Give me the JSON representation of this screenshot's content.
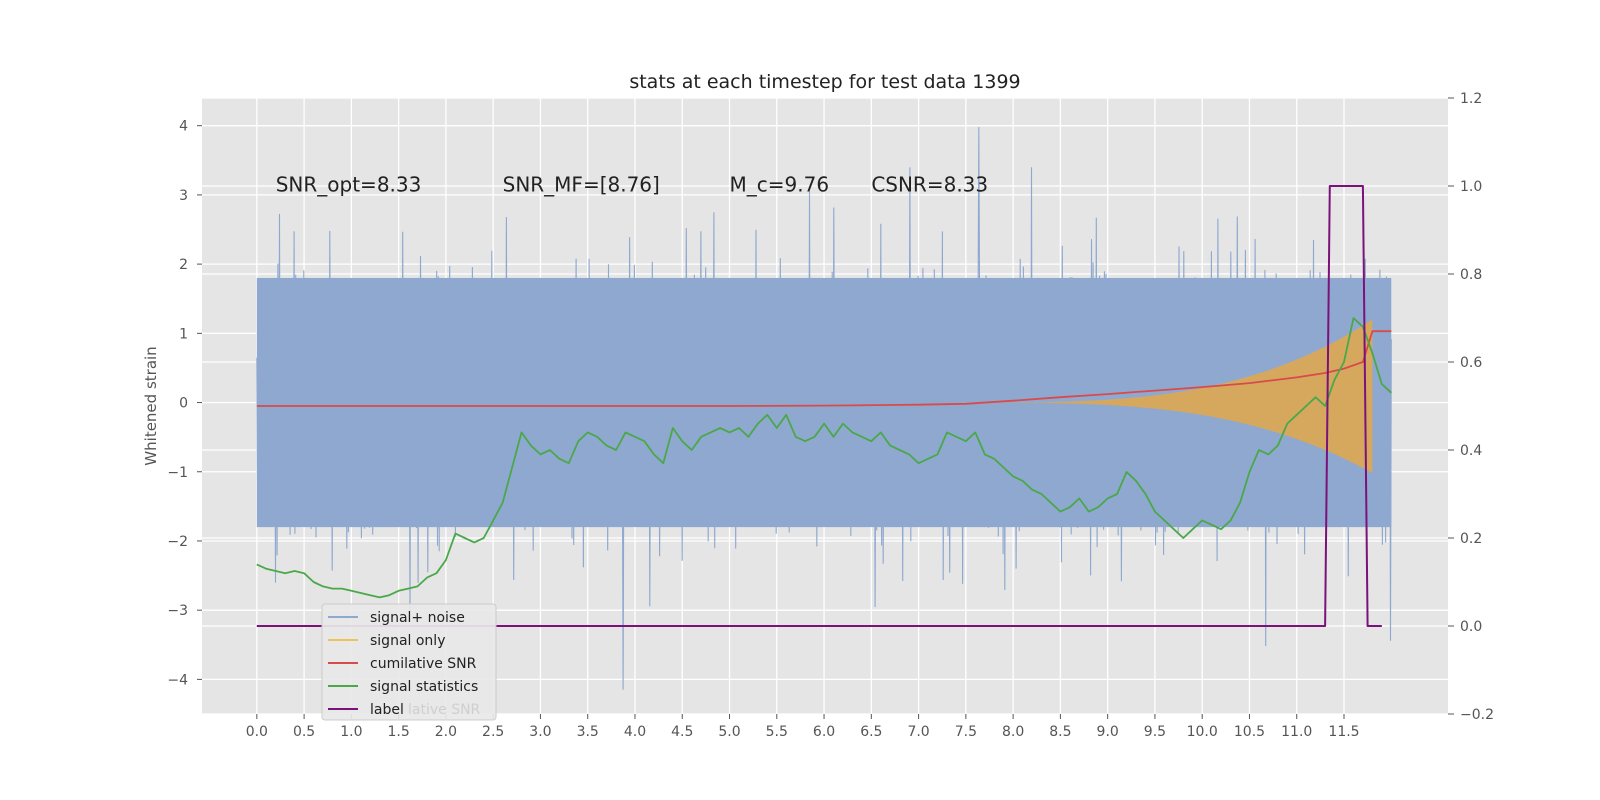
{
  "chart_data": {
    "type": "line",
    "title": "stats at each timestep for test data 1399",
    "xlabel": "",
    "ylabel": "Whitened strain",
    "xlim": [
      -0.58,
      12.6
    ],
    "ylim": [
      -4.5,
      4.4
    ],
    "y2lim": [
      -0.2,
      1.2
    ],
    "xticks": [
      "0.0",
      "0.5",
      "1.0",
      "1.5",
      "2.0",
      "2.5",
      "3.0",
      "3.5",
      "4.0",
      "4.5",
      "5.0",
      "5.5",
      "6.0",
      "6.5",
      "7.0",
      "7.5",
      "8.0",
      "8.5",
      "9.0",
      "9.5",
      "10.0",
      "10.5",
      "11.0",
      "11.5"
    ],
    "yticks": [
      "−4",
      "−3",
      "−2",
      "−1",
      "0",
      "1",
      "2",
      "3",
      "4"
    ],
    "y2ticks": [
      "−0.2",
      "0.0",
      "0.2",
      "0.4",
      "0.6",
      "0.8",
      "1.0",
      "1.2"
    ],
    "grid": true,
    "legend_position": "lower-left",
    "annotations": [
      {
        "text": "SNR_opt=8.33",
        "x": 0.2,
        "y": 3.15
      },
      {
        "text": "SNR_MF=[8.76]",
        "x": 2.6,
        "y": 3.15
      },
      {
        "text": "M_c=9.76",
        "x": 5.0,
        "y": 3.15
      },
      {
        "text": "CSNR=8.33",
        "x": 6.5,
        "y": 3.15
      }
    ],
    "series": [
      {
        "name": "signal+ noise",
        "color": "#8fa8cf",
        "axis": "left",
        "style": "dense-band",
        "x_range": [
          0.0,
          12.0
        ],
        "band_low": -1.8,
        "band_high": 1.8,
        "peak_max": 3.98,
        "peak_min": -4.15
      },
      {
        "name": "signal only",
        "color": "#e6b45a",
        "axis": "left",
        "style": "chirp",
        "x_range": [
          7.5,
          11.8
        ],
        "amp_start": 0.0,
        "amp_end": 1.2
      },
      {
        "name": "cumilative SNR",
        "color": "#d84b4b",
        "axis": "right",
        "x": [
          0.0,
          1.0,
          2.0,
          3.0,
          4.0,
          5.0,
          6.0,
          7.0,
          7.5,
          8.0,
          8.5,
          9.0,
          9.5,
          10.0,
          10.5,
          11.0,
          11.3,
          11.5,
          11.7,
          11.8,
          12.0
        ],
        "y": [
          0.5,
          0.5,
          0.5,
          0.5,
          0.5,
          0.5,
          0.501,
          0.503,
          0.505,
          0.512,
          0.52,
          0.527,
          0.535,
          0.543,
          0.552,
          0.565,
          0.575,
          0.585,
          0.6,
          0.67,
          0.67
        ]
      },
      {
        "name": "signal statistics",
        "color": "#4aa84a",
        "axis": "right",
        "x": [
          0.0,
          0.1,
          0.2,
          0.3,
          0.4,
          0.5,
          0.6,
          0.7,
          0.8,
          0.9,
          1.0,
          1.1,
          1.2,
          1.3,
          1.4,
          1.5,
          1.6,
          1.7,
          1.8,
          1.9,
          2.0,
          2.1,
          2.2,
          2.3,
          2.4,
          2.5,
          2.6,
          2.7,
          2.8,
          2.9,
          3.0,
          3.1,
          3.2,
          3.3,
          3.4,
          3.5,
          3.6,
          3.7,
          3.8,
          3.9,
          4.0,
          4.1,
          4.2,
          4.3,
          4.4,
          4.5,
          4.6,
          4.7,
          4.8,
          4.9,
          5.0,
          5.1,
          5.2,
          5.3,
          5.4,
          5.5,
          5.6,
          5.7,
          5.8,
          5.9,
          6.0,
          6.1,
          6.2,
          6.3,
          6.4,
          6.5,
          6.6,
          6.7,
          6.8,
          6.9,
          7.0,
          7.1,
          7.2,
          7.3,
          7.4,
          7.5,
          7.6,
          7.7,
          7.8,
          7.9,
          8.0,
          8.1,
          8.2,
          8.3,
          8.4,
          8.5,
          8.6,
          8.7,
          8.8,
          8.9,
          9.0,
          9.1,
          9.2,
          9.3,
          9.4,
          9.5,
          9.6,
          9.7,
          9.8,
          9.9,
          10.0,
          10.1,
          10.2,
          10.3,
          10.4,
          10.5,
          10.6,
          10.7,
          10.8,
          10.9,
          11.0,
          11.1,
          11.2,
          11.3,
          11.4,
          11.5,
          11.6,
          11.7,
          11.8,
          11.9,
          12.0
        ],
        "y": [
          0.14,
          0.13,
          0.125,
          0.12,
          0.125,
          0.12,
          0.1,
          0.09,
          0.085,
          0.085,
          0.08,
          0.075,
          0.07,
          0.065,
          0.07,
          0.08,
          0.085,
          0.09,
          0.11,
          0.12,
          0.15,
          0.21,
          0.2,
          0.19,
          0.2,
          0.24,
          0.28,
          0.36,
          0.44,
          0.41,
          0.39,
          0.4,
          0.38,
          0.37,
          0.42,
          0.44,
          0.43,
          0.41,
          0.4,
          0.44,
          0.43,
          0.42,
          0.39,
          0.37,
          0.45,
          0.42,
          0.4,
          0.43,
          0.44,
          0.45,
          0.44,
          0.45,
          0.43,
          0.46,
          0.48,
          0.45,
          0.48,
          0.43,
          0.42,
          0.43,
          0.46,
          0.43,
          0.46,
          0.44,
          0.43,
          0.42,
          0.44,
          0.41,
          0.4,
          0.39,
          0.37,
          0.38,
          0.39,
          0.44,
          0.43,
          0.42,
          0.44,
          0.39,
          0.38,
          0.36,
          0.34,
          0.33,
          0.31,
          0.3,
          0.28,
          0.26,
          0.27,
          0.29,
          0.26,
          0.27,
          0.29,
          0.3,
          0.35,
          0.33,
          0.3,
          0.26,
          0.24,
          0.22,
          0.2,
          0.22,
          0.24,
          0.23,
          0.22,
          0.24,
          0.28,
          0.35,
          0.4,
          0.39,
          0.41,
          0.46,
          0.48,
          0.5,
          0.52,
          0.5,
          0.56,
          0.6,
          0.7,
          0.68,
          0.62,
          0.55,
          0.53
        ]
      },
      {
        "name": "label",
        "color": "#7a127a",
        "axis": "right",
        "x": [
          0.0,
          11.3,
          11.35,
          11.7,
          11.75,
          11.9
        ],
        "y": [
          0.0,
          0.0,
          1.0,
          1.0,
          0.0,
          0.0
        ]
      }
    ],
    "legend_entries": [
      {
        "name": "signal+ noise",
        "color": "#8fa8cf"
      },
      {
        "name": "signal only",
        "color": "#f0c35a"
      },
      {
        "name": "cumilative SNR",
        "color": "#d84b4b"
      },
      {
        "name": "signal statistics",
        "color": "#4aa84a"
      },
      {
        "name": "label",
        "color": "#7a127a"
      }
    ],
    "legend_ghost_text": "lative SNR"
  }
}
